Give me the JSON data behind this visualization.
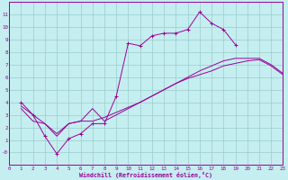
{
  "background_color": "#c5eef0",
  "line_color": "#990099",
  "grid_color": "#99cccc",
  "xlabel": "Windchill (Refroidissement éolien,°C)",
  "xlim": [
    0,
    23
  ],
  "ylim": [
    -1,
    12
  ],
  "xticks": [
    0,
    1,
    2,
    3,
    4,
    5,
    6,
    7,
    8,
    9,
    10,
    11,
    12,
    13,
    14,
    15,
    16,
    17,
    18,
    19,
    20,
    21,
    22,
    23
  ],
  "yticks": [
    0,
    1,
    2,
    3,
    4,
    5,
    6,
    7,
    8,
    9,
    10,
    11
  ],
  "ytick_labels": [
    "-0",
    "1",
    "2",
    "3",
    "4",
    "5",
    "6",
    "7",
    "8",
    "9",
    "10",
    "11"
  ],
  "line1_x": [
    1,
    2,
    3,
    4,
    5,
    6,
    7,
    8,
    9,
    10,
    11,
    12,
    13,
    14,
    15,
    16,
    17,
    18,
    19
  ],
  "line1_y": [
    4.0,
    3.0,
    1.3,
    -0.1,
    1.1,
    1.5,
    2.3,
    2.3,
    4.5,
    8.7,
    8.5,
    9.3,
    9.5,
    9.5,
    9.8,
    11.2,
    10.3,
    9.8,
    8.6
  ],
  "line2_x": [
    1,
    3,
    4,
    5,
    6,
    7,
    8,
    9,
    10,
    11,
    12,
    13,
    14,
    15,
    16,
    17,
    18,
    19,
    20,
    21,
    22,
    23
  ],
  "line2_y": [
    3.7,
    2.3,
    1.3,
    2.3,
    2.5,
    3.5,
    2.5,
    3.0,
    3.5,
    4.0,
    4.5,
    5.0,
    5.5,
    6.0,
    6.5,
    6.9,
    7.3,
    7.5,
    7.5,
    7.5,
    7.0,
    6.3
  ],
  "line3_x": [
    1,
    2,
    3,
    4,
    5,
    6,
    7,
    8,
    9,
    10,
    11,
    12,
    13,
    14,
    15,
    16,
    17,
    18,
    19,
    20,
    21,
    22,
    23
  ],
  "line3_y": [
    3.5,
    2.5,
    2.3,
    1.5,
    2.3,
    2.5,
    2.5,
    2.8,
    3.2,
    3.6,
    4.0,
    4.5,
    5.0,
    5.5,
    5.9,
    6.2,
    6.5,
    6.9,
    7.1,
    7.3,
    7.4,
    6.9,
    6.2
  ]
}
